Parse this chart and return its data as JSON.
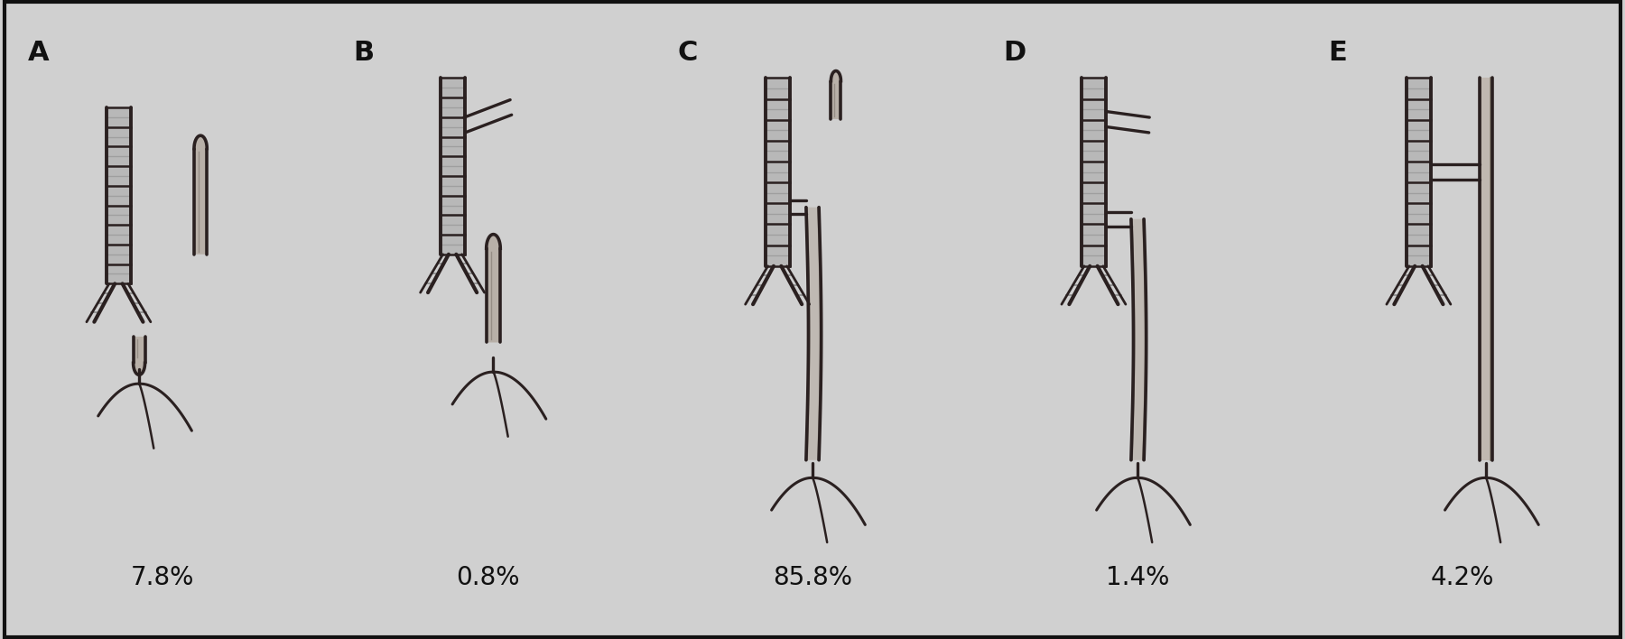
{
  "panels": [
    "A",
    "B",
    "C",
    "D",
    "E"
  ],
  "percentages": [
    "7.8%",
    "0.8%",
    "85.8%",
    "1.4%",
    "4.2%"
  ],
  "bg_color": "#d0d0d0",
  "draw_color": "#2a2020",
  "shade_color": "#666666",
  "light_color": "#e8e8e8",
  "text_color": "#111111",
  "label_fontsize": 22,
  "pct_fontsize": 20,
  "figure_width": 18.0,
  "figure_height": 7.08,
  "lw_main": 2.0,
  "lw_thin": 1.2
}
